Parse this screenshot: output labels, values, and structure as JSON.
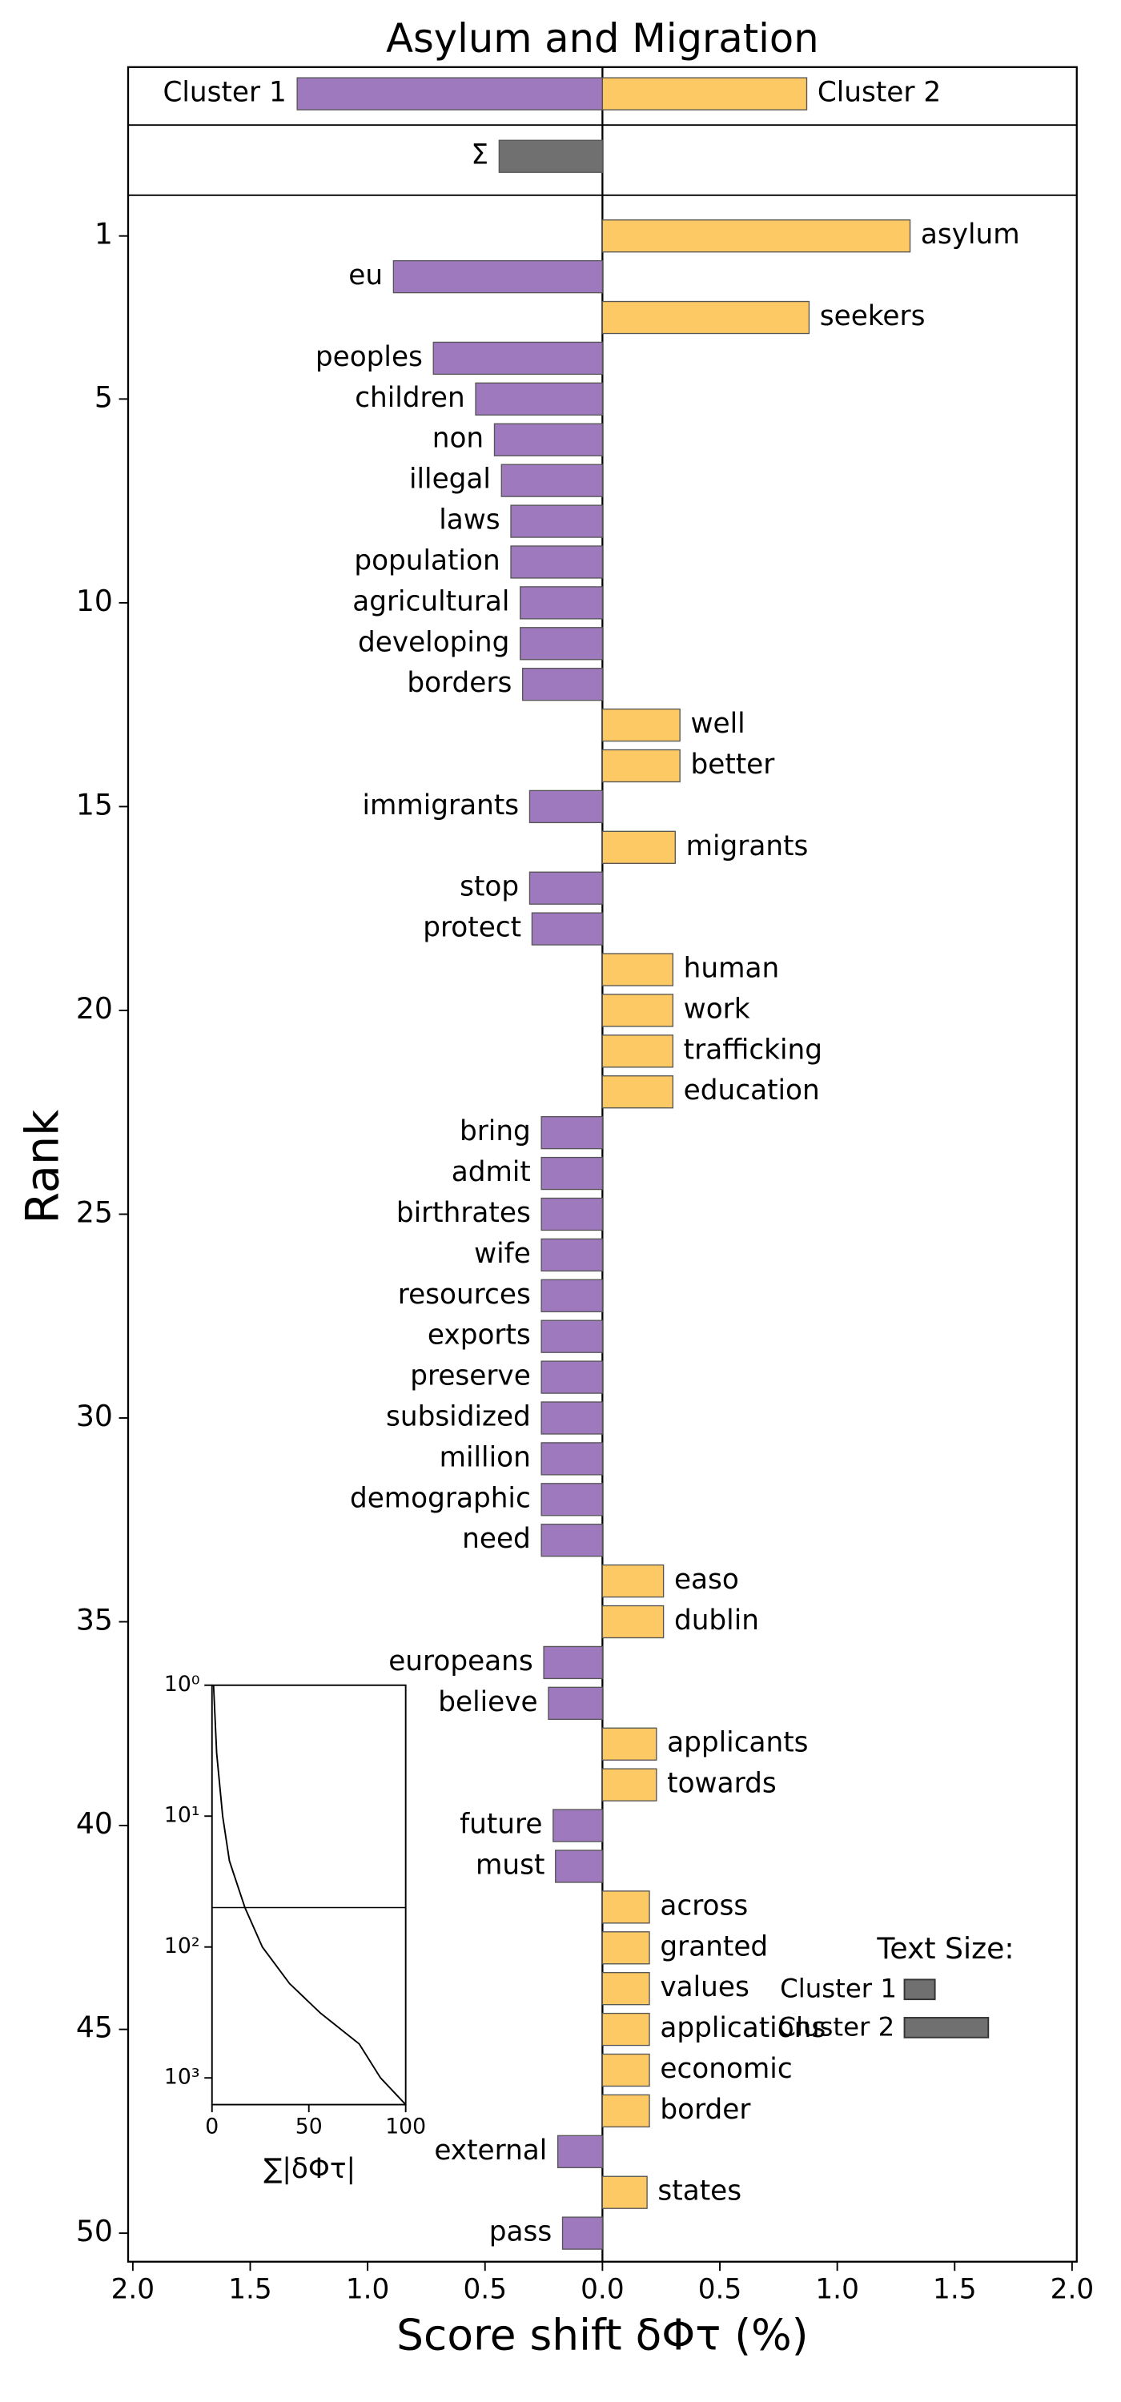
{
  "chart_data": [
    {
      "type": "bar",
      "title": "Asylum and Migration",
      "xlabel": "Score shift δΦτ (%)",
      "ylabel": "Rank",
      "categories": [
        "asylum",
        "eu",
        "seekers",
        "peoples",
        "children",
        "non",
        "illegal",
        "laws",
        "population",
        "agricultural",
        "developing",
        "borders",
        "well",
        "better",
        "immigrants",
        "migrants",
        "stop",
        "protect",
        "human",
        "work",
        "trafficking",
        "education",
        "bring",
        "admit",
        "birthrates",
        "wife",
        "resources",
        "exports",
        "preserve",
        "subsidized",
        "million",
        "demographic",
        "need",
        "easo",
        "dublin",
        "europeans",
        "believe",
        "applicants",
        "towards",
        "future",
        "must",
        "across",
        "granted",
        "values",
        "applications",
        "economic",
        "border",
        "external",
        "states",
        "pass"
      ],
      "values": [
        1.31,
        -0.89,
        0.88,
        -0.72,
        -0.54,
        -0.46,
        -0.43,
        -0.39,
        -0.39,
        -0.35,
        -0.35,
        -0.34,
        0.33,
        0.33,
        -0.31,
        0.31,
        -0.31,
        -0.3,
        0.3,
        0.3,
        0.3,
        0.3,
        -0.26,
        -0.26,
        -0.26,
        -0.26,
        -0.26,
        -0.26,
        -0.26,
        -0.26,
        -0.26,
        -0.26,
        -0.26,
        0.26,
        0.26,
        -0.25,
        -0.23,
        0.23,
        0.23,
        -0.21,
        -0.2,
        0.2,
        0.2,
        0.2,
        0.2,
        0.2,
        0.2,
        -0.19,
        0.19,
        -0.17
      ],
      "color_negative": "#9f79be",
      "color_positive": "#fdc964",
      "totals": {
        "categories": [
          "Cluster 1",
          "Cluster 2"
        ],
        "values": [
          -1.3,
          0.87
        ]
      },
      "sum": {
        "label": "Σ",
        "value": -0.44,
        "color": "#707070"
      },
      "xlim": [
        -2.02,
        2.02
      ],
      "xticks": [
        {
          "value": -2,
          "label": "2.0"
        },
        {
          "value": -1.5,
          "label": "1.5"
        },
        {
          "value": -1,
          "label": "1.0"
        },
        {
          "value": -0.5,
          "label": "0.5"
        },
        {
          "value": 0,
          "label": "0.0"
        },
        {
          "value": 0.5,
          "label": "0.5"
        },
        {
          "value": 1,
          "label": "1.0"
        },
        {
          "value": 1.5,
          "label": "1.5"
        },
        {
          "value": 2,
          "label": "2.0"
        }
      ],
      "ylim": [
        0,
        50.7
      ],
      "yticks": [
        1,
        5,
        10,
        15,
        20,
        25,
        30,
        35,
        40,
        45,
        50
      ],
      "text_size_legend": {
        "title": "Text Size:",
        "labels": [
          "Cluster 1",
          "Cluster 2"
        ]
      }
    },
    {
      "type": "line",
      "xlabel": "∑|δΦτ|",
      "x": [
        0.8,
        2.4,
        5.5,
        9,
        17,
        26,
        40,
        56,
        76,
        87,
        100
      ],
      "y": [
        1,
        3.3,
        10,
        22,
        50,
        100,
        190,
        320,
        550,
        1000,
        1600
      ],
      "xlim": [
        0,
        100
      ],
      "xticks": [
        0,
        50,
        100
      ],
      "ylim": [
        1,
        1600
      ],
      "log_y": true,
      "yticks": [
        {
          "value": 1,
          "label": "10⁰"
        },
        {
          "value": 10,
          "label": "10¹"
        },
        {
          "value": 100,
          "label": "10²"
        },
        {
          "value": 1000,
          "label": "10³"
        }
      ],
      "hline": 50
    }
  ]
}
